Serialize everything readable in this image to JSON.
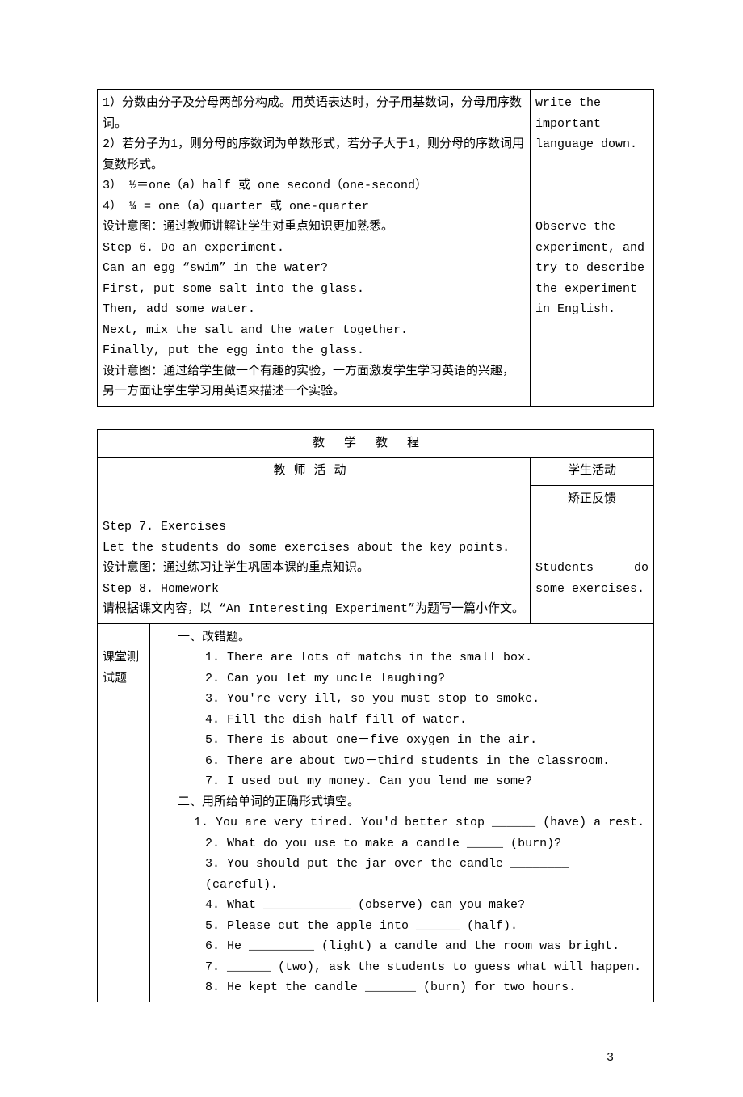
{
  "block1": {
    "left": [
      "1）分数由分子及分母两部分构成。用英语表达时，分子用基数词，分母用序数词。",
      "2）若分子为1，则分母的序数词为单数形式，若分子大于1，则分母的序数词用复数形式。",
      "3）  ½＝one（a）half 或 one second（one-second）",
      "4）  ¼ = one（a）quarter 或 one-quarter",
      "设计意图：通过教师讲解让学生对重点知识更加熟悉。",
      "Step 6. Do an experiment.",
      "Can an egg “swim” in the water?",
      "First, put some salt into the glass.",
      "Then, add some water.",
      "Next, mix the salt and the water together.",
      "Finally, put the egg into the glass.",
      "设计意图：通过给学生做一个有趣的实验，一方面激发学生学习英语的兴趣，另一方面让学生学习用英语来描述一个实验。",
      ""
    ],
    "right_top": "write the important language down.",
    "right_mid": "Observe the experiment, and try to describe the experiment in English."
  },
  "block2": {
    "header_title": "教学教程",
    "teacher_activity": "教师活动",
    "student_activity": "学生活动",
    "feedback": "矫正反馈",
    "left": [
      "Step 7. Exercises",
      "Let the students do some exercises about the key points.",
      "设计意图：通过练习让学生巩固本课的重点知识。",
      "Step 8. Homework",
      "请根据课文内容，以 “An Interesting Experiment”为题写一篇小作文。",
      ""
    ],
    "right_text": "Students do some exercises.",
    "test_label": "课堂测试题",
    "section1_title": "一、改错题。",
    "s1_items": [
      "1.  There are lots of matchs in the small box.",
      "2.  Can you let my uncle laughing?",
      "3.  You're very ill, so you must stop to smoke.",
      "4.  Fill the dish half fill of water.",
      "5.  There is about one－five oxygen in the air.",
      "6.  There are about two－third students in the classroom.",
      "7.  I used out my money. Can you lend me some?"
    ],
    "section2_title": "二、用所给单词的正确形式填空。",
    "s2_items": [
      "1. You are very tired. You'd better stop ______ (have) a rest.",
      "2. What do you use to make a candle _____ (burn)?",
      "3. You should put the jar over the candle ________ (careful).",
      "4. What ____________ (observe) can you make?",
      "5. Please cut the apple into ______ (half).",
      "6. He _________ (light) a candle and the room was bright.",
      "7. ______ (two), ask the students to guess what will happen.",
      "8. He kept the candle _______ (burn) for two hours."
    ]
  },
  "page_number": "3"
}
